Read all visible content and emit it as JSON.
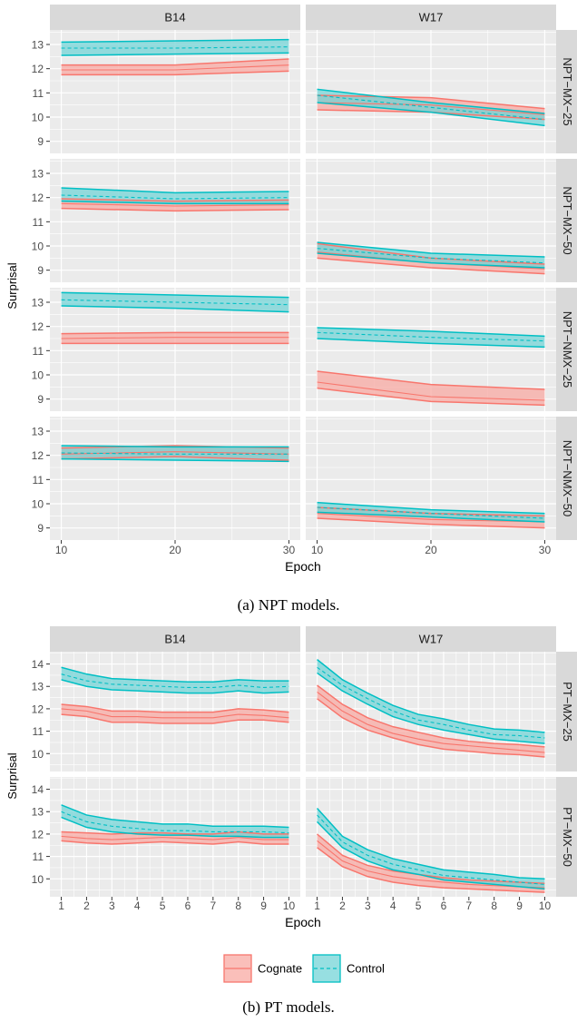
{
  "captions": {
    "a": {
      "prefix": "(a) ",
      "model": "NPT",
      "suffix": " models."
    },
    "b": {
      "prefix": "(b) ",
      "model": "PT",
      "suffix": " models."
    }
  },
  "legend": {
    "items": [
      {
        "label": "Cognate",
        "line": "#f8766d",
        "fill": "#f8a6a0",
        "dashed": false
      },
      {
        "label": "Control",
        "line": "#00bfc4",
        "fill": "#6fd3d5",
        "dashed": true
      }
    ]
  },
  "colors": {
    "panel_bg": "#ebebeb",
    "strip_bg": "#d9d9d9",
    "grid": "#ffffff"
  },
  "chart_data": [
    {
      "type": "area",
      "xlabel": "Epoch",
      "ylabel": "Surprisal",
      "x": [
        10,
        20,
        30
      ],
      "xticks": [
        10,
        20,
        30
      ],
      "xlim": [
        9,
        31
      ],
      "ylim": [
        8.5,
        13.6
      ],
      "yticks": [
        9,
        10,
        11,
        12,
        13
      ],
      "cols": [
        "B14",
        "W17"
      ],
      "rows": [
        "NPT−MX−25",
        "NPT−MX−50",
        "NPT−NMX−25",
        "NPT−NMX−50"
      ],
      "panels": [
        [
          {
            "series": [
              {
                "name": "Cognate",
                "mean": [
                  11.95,
                  11.95,
                  12.15
                ],
                "lower": [
                  11.75,
                  11.75,
                  11.9
                ],
                "upper": [
                  12.15,
                  12.15,
                  12.4
                ]
              },
              {
                "name": "Control",
                "mean": [
                  12.85,
                  12.85,
                  12.9
                ],
                "lower": [
                  12.55,
                  12.6,
                  12.65
                ],
                "upper": [
                  13.1,
                  13.15,
                  13.2
                ]
              }
            ]
          },
          {
            "series": [
              {
                "name": "Cognate",
                "mean": [
                  10.6,
                  10.5,
                  10.1
                ],
                "lower": [
                  10.3,
                  10.2,
                  9.9
                ],
                "upper": [
                  10.9,
                  10.8,
                  10.35
                ]
              },
              {
                "name": "Control",
                "mean": [
                  10.9,
                  10.4,
                  9.9
                ],
                "lower": [
                  10.6,
                  10.2,
                  9.65
                ],
                "upper": [
                  11.15,
                  10.6,
                  10.15
                ]
              }
            ]
          }
        ],
        [
          {
            "series": [
              {
                "name": "Cognate",
                "mean": [
                  11.75,
                  11.65,
                  11.7
                ],
                "lower": [
                  11.55,
                  11.45,
                  11.5
                ],
                "upper": [
                  11.95,
                  11.85,
                  11.9
                ]
              },
              {
                "name": "Control",
                "mean": [
                  12.1,
                  11.95,
                  12.0
                ],
                "lower": [
                  11.85,
                  11.75,
                  11.75
                ],
                "upper": [
                  12.4,
                  12.2,
                  12.25
                ]
              }
            ]
          },
          {
            "series": [
              {
                "name": "Cognate",
                "mean": [
                  9.75,
                  9.3,
                  9.05
                ],
                "lower": [
                  9.5,
                  9.1,
                  8.85
                ],
                "upper": [
                  10.1,
                  9.5,
                  9.25
                ]
              },
              {
                "name": "Control",
                "mean": [
                  9.9,
                  9.5,
                  9.3
                ],
                "lower": [
                  9.7,
                  9.3,
                  9.1
                ],
                "upper": [
                  10.15,
                  9.7,
                  9.55
                ]
              }
            ]
          }
        ],
        [
          {
            "series": [
              {
                "name": "Cognate",
                "mean": [
                  11.5,
                  11.55,
                  11.55
                ],
                "lower": [
                  11.3,
                  11.3,
                  11.3
                ],
                "upper": [
                  11.7,
                  11.75,
                  11.75
                ]
              },
              {
                "name": "Control",
                "mean": [
                  13.1,
                  13.0,
                  12.9
                ],
                "lower": [
                  12.85,
                  12.75,
                  12.6
                ],
                "upper": [
                  13.4,
                  13.3,
                  13.2
                ]
              }
            ]
          },
          {
            "series": [
              {
                "name": "Cognate",
                "mean": [
                  9.7,
                  9.1,
                  8.95
                ],
                "lower": [
                  9.45,
                  8.9,
                  8.75
                ],
                "upper": [
                  10.15,
                  9.6,
                  9.4
                ]
              },
              {
                "name": "Control",
                "mean": [
                  11.75,
                  11.55,
                  11.4
                ],
                "lower": [
                  11.5,
                  11.3,
                  11.15
                ],
                "upper": [
                  11.95,
                  11.8,
                  11.6
                ]
              }
            ]
          }
        ],
        [
          {
            "series": [
              {
                "name": "Cognate",
                "mean": [
                  12.05,
                  12.15,
                  12.05
                ],
                "lower": [
                  11.85,
                  11.95,
                  11.8
                ],
                "upper": [
                  12.3,
                  12.4,
                  12.3
                ]
              },
              {
                "name": "Control",
                "mean": [
                  12.1,
                  12.05,
                  12.05
                ],
                "lower": [
                  11.85,
                  11.8,
                  11.75
                ],
                "upper": [
                  12.4,
                  12.35,
                  12.35
                ]
              }
            ]
          },
          {
            "series": [
              {
                "name": "Cognate",
                "mean": [
                  9.6,
                  9.35,
                  9.25
                ],
                "lower": [
                  9.4,
                  9.15,
                  9.0
                ],
                "upper": [
                  9.85,
                  9.6,
                  9.5
                ]
              },
              {
                "name": "Control",
                "mean": [
                  9.85,
                  9.6,
                  9.4
                ],
                "lower": [
                  9.65,
                  9.45,
                  9.25
                ],
                "upper": [
                  10.05,
                  9.75,
                  9.6
                ]
              }
            ]
          }
        ]
      ]
    },
    {
      "type": "area",
      "xlabel": "Epoch",
      "ylabel": "Surprisal",
      "x": [
        1,
        2,
        3,
        4,
        5,
        6,
        7,
        8,
        9,
        10
      ],
      "xticks": [
        1,
        2,
        3,
        4,
        5,
        6,
        7,
        8,
        9,
        10
      ],
      "xlim": [
        0.55,
        10.45
      ],
      "ylim": [
        9.2,
        14.55
      ],
      "yticks": [
        10,
        11,
        12,
        13,
        14
      ],
      "cols": [
        "B14",
        "W17"
      ],
      "rows": [
        "PT−MX−25",
        "PT−MX−50"
      ],
      "panels": [
        [
          {
            "series": [
              {
                "name": "Cognate",
                "mean": [
                  12.0,
                  11.9,
                  11.65,
                  11.65,
                  11.6,
                  11.6,
                  11.6,
                  11.75,
                  11.7,
                  11.6
                ],
                "lower": [
                  11.75,
                  11.65,
                  11.4,
                  11.4,
                  11.35,
                  11.35,
                  11.35,
                  11.5,
                  11.5,
                  11.4
                ],
                "upper": [
                  12.2,
                  12.1,
                  11.9,
                  11.9,
                  11.85,
                  11.85,
                  11.85,
                  12.0,
                  11.95,
                  11.85
                ]
              },
              {
                "name": "Control",
                "mean": [
                  13.55,
                  13.25,
                  13.1,
                  13.05,
                  13.0,
                  12.95,
                  12.95,
                  13.05,
                  12.95,
                  13.0
                ],
                "lower": [
                  13.3,
                  13.0,
                  12.85,
                  12.8,
                  12.75,
                  12.7,
                  12.7,
                  12.8,
                  12.7,
                  12.75
                ],
                "upper": [
                  13.85,
                  13.55,
                  13.35,
                  13.3,
                  13.25,
                  13.2,
                  13.2,
                  13.3,
                  13.25,
                  13.25
                ]
              }
            ]
          },
          {
            "series": [
              {
                "name": "Cognate",
                "mean": [
                  12.75,
                  11.9,
                  11.3,
                  10.9,
                  10.65,
                  10.45,
                  10.35,
                  10.25,
                  10.15,
                  10.05
                ],
                "lower": [
                  12.45,
                  11.6,
                  11.05,
                  10.7,
                  10.4,
                  10.2,
                  10.1,
                  10.0,
                  9.95,
                  9.85
                ],
                "upper": [
                  13.05,
                  12.2,
                  11.6,
                  11.2,
                  10.95,
                  10.7,
                  10.55,
                  10.45,
                  10.4,
                  10.3
                ]
              },
              {
                "name": "Control",
                "mean": [
                  13.85,
                  13.05,
                  12.45,
                  11.9,
                  11.5,
                  11.3,
                  11.05,
                  10.85,
                  10.8,
                  10.7
                ],
                "lower": [
                  13.6,
                  12.8,
                  12.2,
                  11.65,
                  11.3,
                  11.05,
                  10.85,
                  10.65,
                  10.55,
                  10.45
                ],
                "upper": [
                  14.2,
                  13.3,
                  12.7,
                  12.15,
                  11.75,
                  11.55,
                  11.3,
                  11.1,
                  11.05,
                  10.95
                ]
              }
            ]
          }
        ],
        [
          {
            "series": [
              {
                "name": "Cognate",
                "mean": [
                  11.9,
                  11.8,
                  11.75,
                  11.8,
                  11.85,
                  11.8,
                  11.75,
                  11.85,
                  11.75,
                  11.75
                ],
                "lower": [
                  11.7,
                  11.6,
                  11.55,
                  11.6,
                  11.65,
                  11.6,
                  11.55,
                  11.65,
                  11.55,
                  11.55
                ],
                "upper": [
                  12.1,
                  12.05,
                  12.0,
                  12.05,
                  12.05,
                  12.0,
                  12.0,
                  12.1,
                  12.0,
                  12.0
                ]
              },
              {
                "name": "Control",
                "mean": [
                  13.0,
                  12.55,
                  12.35,
                  12.25,
                  12.15,
                  12.15,
                  12.1,
                  12.1,
                  12.1,
                  12.05
                ],
                "lower": [
                  12.75,
                  12.3,
                  12.1,
                  12.0,
                  11.95,
                  11.95,
                  11.9,
                  11.9,
                  11.85,
                  11.85
                ],
                "upper": [
                  13.3,
                  12.85,
                  12.65,
                  12.55,
                  12.45,
                  12.45,
                  12.35,
                  12.35,
                  12.35,
                  12.3
                ]
              }
            ]
          },
          {
            "series": [
              {
                "name": "Cognate",
                "mean": [
                  11.7,
                  10.8,
                  10.35,
                  10.1,
                  9.95,
                  9.85,
                  9.75,
                  9.7,
                  9.65,
                  9.6
                ],
                "lower": [
                  11.4,
                  10.55,
                  10.1,
                  9.85,
                  9.7,
                  9.6,
                  9.55,
                  9.5,
                  9.45,
                  9.4
                ],
                "upper": [
                  12.0,
                  11.05,
                  10.6,
                  10.35,
                  10.2,
                  10.05,
                  9.95,
                  9.9,
                  9.85,
                  9.8
                ]
              },
              {
                "name": "Control",
                "mean": [
                  12.85,
                  11.65,
                  11.05,
                  10.65,
                  10.4,
                  10.15,
                  10.05,
                  9.95,
                  9.85,
                  9.75
                ],
                "lower": [
                  12.55,
                  11.4,
                  10.8,
                  10.4,
                  10.2,
                  9.95,
                  9.85,
                  9.75,
                  9.65,
                  9.55
                ],
                "upper": [
                  13.15,
                  11.9,
                  11.3,
                  10.9,
                  10.65,
                  10.4,
                  10.3,
                  10.2,
                  10.05,
                  10.0
                ]
              }
            ]
          }
        ]
      ]
    }
  ]
}
